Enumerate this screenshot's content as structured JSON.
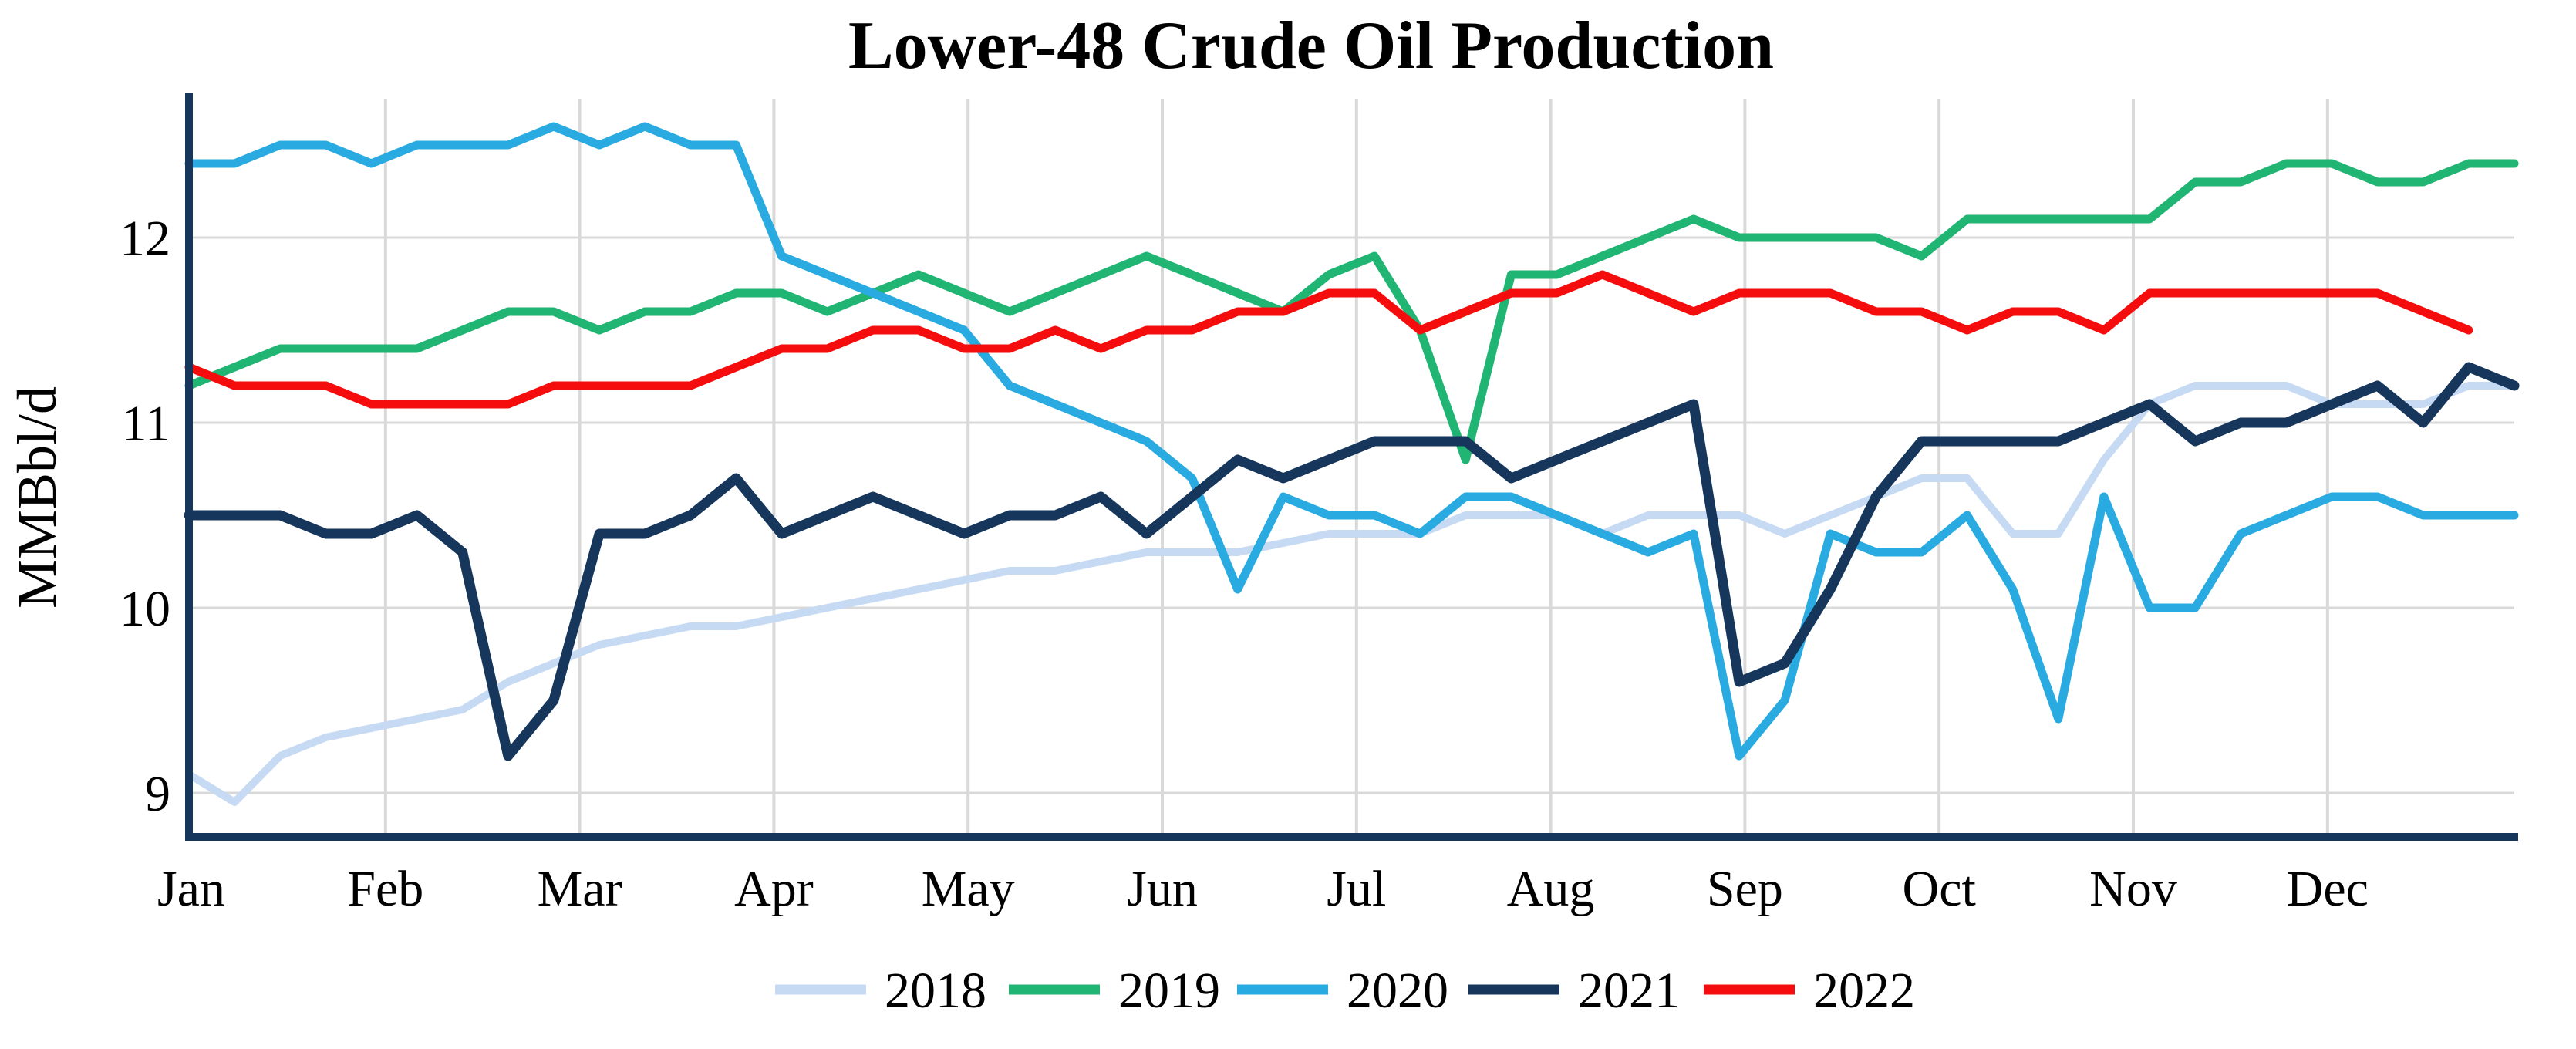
{
  "title": "Lower-48 Crude Oil Production",
  "y_axis": {
    "label": "MMBbl/d",
    "ticks": [
      "12",
      "11",
      "10",
      "9"
    ]
  },
  "x_axis": {
    "months": [
      "Jan",
      "Feb",
      "Mar",
      "Apr",
      "May",
      "Jun",
      "Jul",
      "Aug",
      "Sep",
      "Oct",
      "Nov",
      "Dec"
    ]
  },
  "legend": {
    "items": [
      "2018",
      "2019",
      "2020",
      "2021",
      "2022"
    ],
    "position": "bottom"
  },
  "colors": {
    "series_2018": "#c6dbf3",
    "series_2019": "#21b573",
    "series_2020": "#29abe2",
    "series_2021": "#16365c",
    "series_2022": "#f50d0d",
    "gridline": "#d9d9d9",
    "axis": "#16365c",
    "text": "#000000",
    "background": "#ffffff"
  },
  "chart_data": {
    "type": "line",
    "title": "Lower-48 Crude Oil Production",
    "xlabel": "",
    "ylabel": "MMBbl/d",
    "ylim": [
      8.75,
      12.78
    ],
    "x_unit": "week of year (1-52)",
    "xtick_labels": [
      "Jan",
      "Feb",
      "Mar",
      "Apr",
      "May",
      "Jun",
      "Jul",
      "Aug",
      "Sep",
      "Oct",
      "Nov",
      "Dec"
    ],
    "ytick_values": [
      9,
      10,
      11,
      12
    ],
    "grid": true,
    "legend_position": "bottom",
    "series": [
      {
        "name": "2018",
        "color": "#c6dbf3",
        "stroke_width": 10,
        "values": [
          9.1,
          8.95,
          9.2,
          9.3,
          9.35,
          9.4,
          9.45,
          9.6,
          9.7,
          9.8,
          9.85,
          9.9,
          9.9,
          9.95,
          10.0,
          10.05,
          10.1,
          10.15,
          10.2,
          10.2,
          10.25,
          10.3,
          10.3,
          10.3,
          10.35,
          10.4,
          10.4,
          10.4,
          10.5,
          10.5,
          10.5,
          10.4,
          10.5,
          10.5,
          10.5,
          10.4,
          10.5,
          10.6,
          10.7,
          10.7,
          10.4,
          10.4,
          10.8,
          11.1,
          11.2,
          11.2,
          11.2,
          11.1,
          11.1,
          11.1,
          11.2,
          11.2
        ]
      },
      {
        "name": "2019",
        "color": "#21b573",
        "stroke_width": 11,
        "values": [
          11.2,
          11.3,
          11.4,
          11.4,
          11.4,
          11.4,
          11.5,
          11.6,
          11.6,
          11.5,
          11.6,
          11.6,
          11.7,
          11.7,
          11.6,
          11.7,
          11.8,
          11.7,
          11.6,
          11.7,
          11.8,
          11.9,
          11.8,
          11.7,
          11.6,
          11.8,
          11.9,
          11.5,
          10.8,
          11.8,
          11.8,
          11.9,
          12.0,
          12.1,
          12.0,
          12.0,
          12.0,
          12.0,
          11.9,
          12.1,
          12.1,
          12.1,
          12.1,
          12.1,
          12.3,
          12.3,
          12.4,
          12.4,
          12.3,
          12.3,
          12.4,
          12.4
        ]
      },
      {
        "name": "2020",
        "color": "#29abe2",
        "stroke_width": 11,
        "values": [
          12.4,
          12.4,
          12.5,
          12.5,
          12.4,
          12.5,
          12.5,
          12.5,
          12.6,
          12.5,
          12.6,
          12.5,
          12.5,
          11.9,
          11.8,
          11.7,
          11.6,
          11.5,
          11.2,
          11.1,
          11.0,
          10.9,
          10.7,
          10.1,
          10.6,
          10.5,
          10.5,
          10.4,
          10.6,
          10.6,
          10.5,
          10.4,
          10.3,
          10.4,
          9.2,
          9.5,
          10.4,
          10.3,
          10.3,
          10.5,
          10.1,
          9.4,
          10.6,
          10.0,
          10.0,
          10.4,
          10.5,
          10.6,
          10.6,
          10.5,
          10.5,
          10.5
        ]
      },
      {
        "name": "2021",
        "color": "#16365c",
        "stroke_width": 13,
        "values": [
          10.5,
          10.5,
          10.5,
          10.4,
          10.4,
          10.5,
          10.3,
          9.2,
          9.5,
          10.4,
          10.4,
          10.5,
          10.7,
          10.4,
          10.5,
          10.6,
          10.5,
          10.4,
          10.5,
          10.5,
          10.6,
          10.4,
          10.6,
          10.8,
          10.7,
          10.8,
          10.9,
          10.9,
          10.9,
          10.7,
          10.8,
          10.9,
          11.0,
          11.1,
          9.6,
          9.7,
          10.1,
          10.6,
          10.9,
          10.9,
          10.9,
          10.9,
          11.0,
          11.1,
          10.9,
          11.0,
          11.0,
          11.1,
          11.2,
          11.0,
          11.3,
          11.2
        ]
      },
      {
        "name": "2022",
        "color": "#f50d0d",
        "stroke_width": 11,
        "values": [
          11.3,
          11.2,
          11.2,
          11.2,
          11.1,
          11.1,
          11.1,
          11.1,
          11.2,
          11.2,
          11.2,
          11.2,
          11.3,
          11.4,
          11.4,
          11.5,
          11.5,
          11.4,
          11.4,
          11.5,
          11.4,
          11.5,
          11.5,
          11.6,
          11.6,
          11.7,
          11.7,
          11.5,
          11.6,
          11.7,
          11.7,
          11.8,
          11.7,
          11.6,
          11.7,
          11.7,
          11.7,
          11.6,
          11.6,
          11.5,
          11.6,
          11.6,
          11.5,
          11.7,
          11.7,
          11.7,
          11.7,
          11.7,
          11.7,
          11.6,
          11.5
        ]
      }
    ]
  }
}
